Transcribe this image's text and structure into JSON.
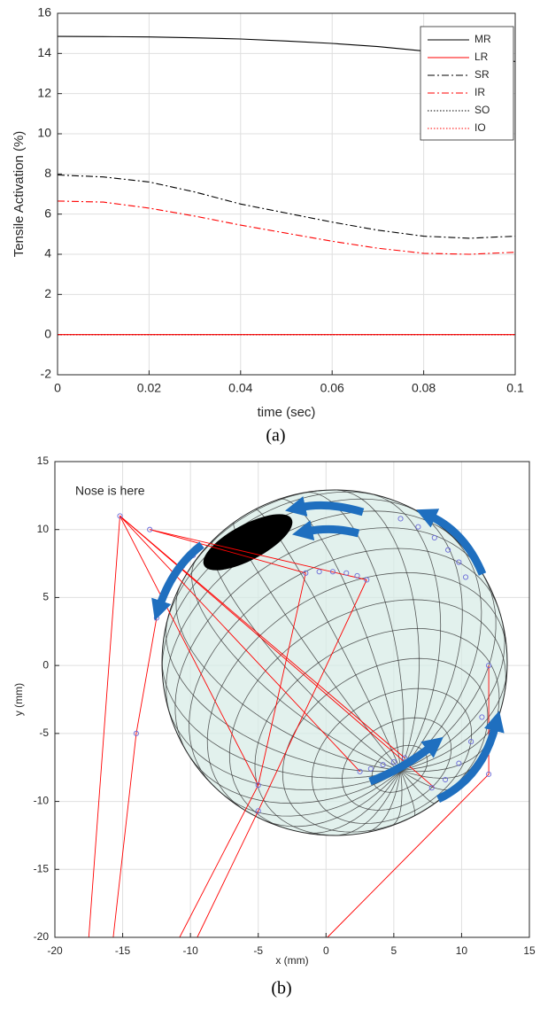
{
  "chart_data": [
    {
      "type": "line",
      "x": [
        0,
        0.01,
        0.02,
        0.03,
        0.04,
        0.05,
        0.06,
        0.07,
        0.08,
        0.09,
        0.1
      ],
      "series": [
        {
          "name": "MR",
          "color": "#000000",
          "dash": "solid",
          "values": [
            14.85,
            14.84,
            14.82,
            14.78,
            14.72,
            14.62,
            14.5,
            14.34,
            14.12,
            13.88,
            13.6
          ]
        },
        {
          "name": "LR",
          "color": "#ff0000",
          "dash": "solid",
          "values": [
            0,
            0,
            0,
            0,
            0,
            0,
            0,
            0,
            0,
            0,
            0
          ]
        },
        {
          "name": "SR",
          "color": "#000000",
          "dash": "dashdot",
          "values": [
            7.95,
            7.85,
            7.6,
            7.1,
            6.5,
            6.05,
            5.6,
            5.2,
            4.9,
            4.8,
            4.9
          ]
        },
        {
          "name": "IR",
          "color": "#ff0000",
          "dash": "dashdot",
          "values": [
            6.65,
            6.6,
            6.3,
            5.9,
            5.45,
            5.05,
            4.65,
            4.3,
            4.05,
            4.0,
            4.1
          ]
        },
        {
          "name": "SO",
          "color": "#000000",
          "dash": "dotted",
          "values": [
            0,
            0,
            0,
            0,
            0,
            0,
            0,
            0,
            0,
            0,
            0
          ]
        },
        {
          "name": "IO",
          "color": "#ff0000",
          "dash": "dotted",
          "values": [
            0,
            0,
            0,
            0,
            0,
            0,
            0,
            0,
            0,
            0,
            0
          ]
        }
      ],
      "xlabel": "time (sec)",
      "ylabel": "Tensile Activation (%)",
      "xlim": [
        0,
        0.1
      ],
      "ylim": [
        -2,
        16
      ],
      "xticks": [
        0,
        0.02,
        0.04,
        0.06,
        0.08,
        0.1
      ],
      "yticks": [
        -2,
        0,
        2,
        4,
        6,
        8,
        10,
        12,
        14,
        16
      ],
      "grid": true,
      "legend": "upper right",
      "caption": "(a)"
    },
    {
      "type": "line",
      "series": [
        {
          "color": "#ff0000",
          "x": [
            -17.5,
            -15.2,
            8
          ],
          "values": [
            -20,
            11,
            -9
          ]
        },
        {
          "color": "#ff0000",
          "x": [
            -15.2,
            2.5
          ],
          "values": [
            11,
            -7.8
          ]
        },
        {
          "color": "#ff0000",
          "x": [
            -15.2,
            5.8
          ],
          "values": [
            11,
            -6.8
          ]
        },
        {
          "color": "#ff0000",
          "x": [
            -15.2,
            -5
          ],
          "values": [
            11,
            -8.8
          ]
        },
        {
          "color": "#ff0000",
          "x": [
            -15.7,
            -14,
            -12.5,
            -11,
            -9.8
          ],
          "values": [
            -20,
            -5,
            3.5,
            7,
            8.1
          ]
        },
        {
          "color": "#ff0000",
          "x": [
            -13,
            -1.5
          ],
          "values": [
            10,
            6.8
          ]
        },
        {
          "color": "#ff0000",
          "x": [
            -13,
            3
          ],
          "values": [
            10,
            6.3
          ]
        },
        {
          "color": "#ff0000",
          "x": [
            -10.8,
            -5,
            -1.5
          ],
          "values": [
            -20,
            -8.8,
            6.8
          ]
        },
        {
          "color": "#ff0000",
          "x": [
            -9.5,
            -5,
            3
          ],
          "values": [
            -20,
            -10.7,
            6.3
          ]
        },
        {
          "color": "#ff0000",
          "x": [
            0.1,
            12,
            12
          ],
          "values": [
            -20,
            -8,
            0
          ]
        },
        {
          "color": "#6a6ad8",
          "marker": "circle",
          "line": false,
          "x": [
            -15.2,
            -13,
            -14,
            -5,
            -5,
            12,
            12,
            -12.5,
            -12,
            -11.3,
            -10.6,
            -9.8,
            -1.5,
            -0.5,
            0.5,
            1.5,
            2.3,
            3,
            2.5,
            3.3,
            4.2,
            5,
            5.8,
            7.8,
            8.8,
            9.8,
            10.7,
            11.5,
            5.5,
            6.8,
            8,
            9,
            9.8,
            10.3
          ],
          "values": [
            11,
            10,
            -5,
            -8.8,
            -10.7,
            -8,
            0,
            3.5,
            5,
            6.3,
            7.3,
            8.1,
            6.8,
            6.9,
            6.9,
            6.8,
            6.6,
            6.3,
            -7.8,
            -7.6,
            -7.3,
            -7.1,
            -6.8,
            -9,
            -8.4,
            -7.2,
            -5.6,
            -3.8,
            10.8,
            10.2,
            9.4,
            8.5,
            7.6,
            6.5
          ]
        }
      ],
      "xlabel": "x (mm)",
      "ylabel": "y (mm)",
      "xlim": [
        -20,
        15
      ],
      "ylim": [
        -20,
        15
      ],
      "xticks": [
        -20,
        -15,
        -10,
        -5,
        0,
        5,
        10,
        15
      ],
      "yticks": [
        -20,
        -15,
        -10,
        -5,
        0,
        5,
        10,
        15
      ],
      "grid": true,
      "annotations": [
        {
          "text": "Nose is here",
          "x": -18.5,
          "y": 12.8
        }
      ],
      "caption": "(b)"
    }
  ]
}
